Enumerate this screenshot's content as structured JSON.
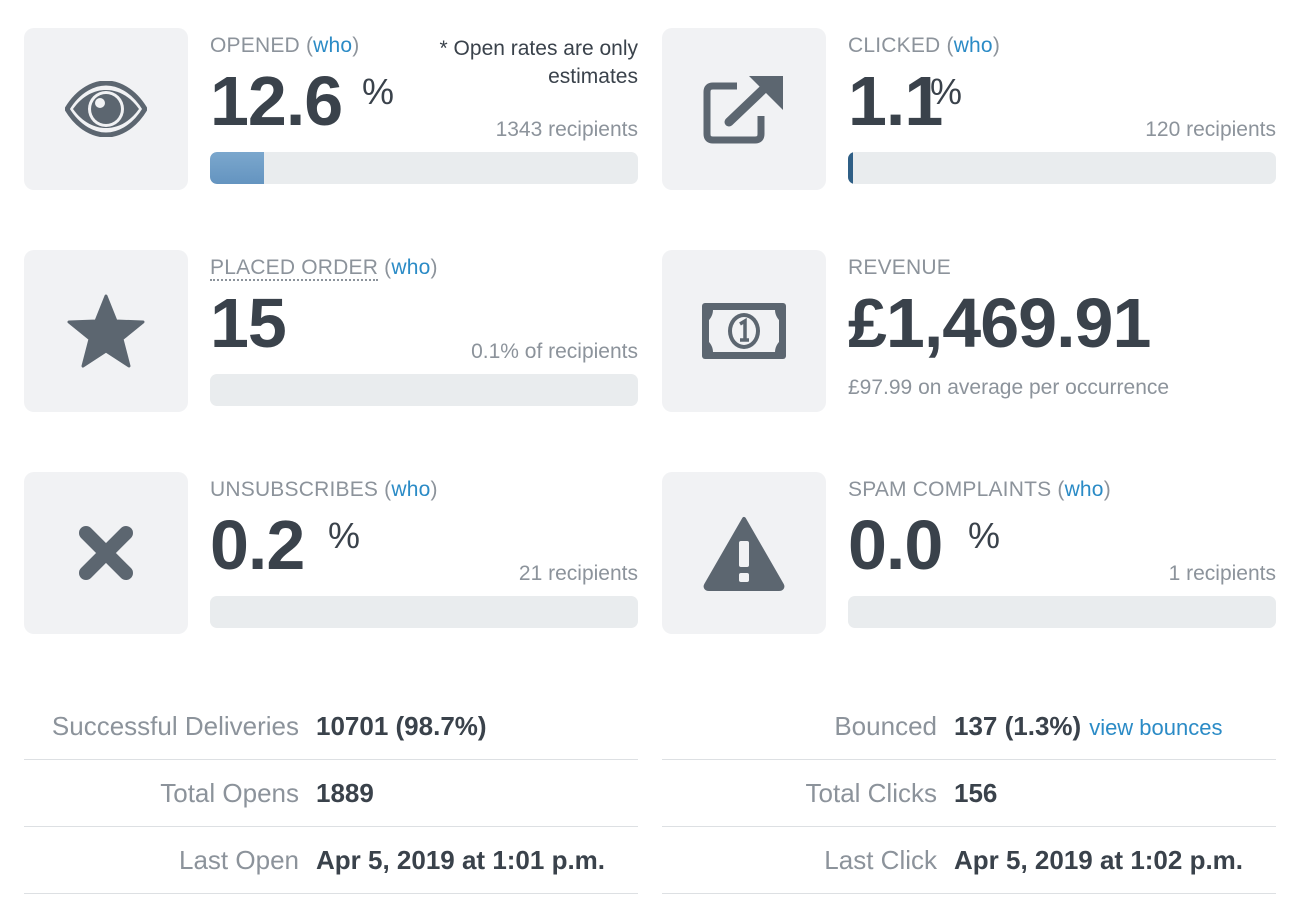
{
  "metrics": {
    "opened": {
      "label": "OPENED",
      "who": "who",
      "paren_open": "(",
      "paren_close": ")",
      "value": "12.6",
      "unit": "%",
      "recipients": "1343 recipients",
      "note": "* Open rates are only estimates",
      "progress_percent": 12.6,
      "icon": "eye-icon"
    },
    "clicked": {
      "label": "CLICKED",
      "who": "who",
      "paren_open": "(",
      "paren_close": ")",
      "value": "1.1",
      "unit": "%",
      "recipients": "120 recipients",
      "progress_percent": 1.1,
      "icon": "external-link-icon"
    },
    "placed_order": {
      "label": "PLACED ORDER",
      "who": "who",
      "paren_open": "(",
      "paren_close": ")",
      "value": "15",
      "recipients": "0.1% of recipients",
      "progress_percent": 0.1,
      "icon": "star-icon"
    },
    "revenue": {
      "label": "REVENUE",
      "value": "£1,469.91",
      "average": "£97.99 on average per occurrence",
      "icon": "banknote-icon"
    },
    "unsubscribes": {
      "label": "UNSUBSCRIBES",
      "who": "who",
      "paren_open": "(",
      "paren_close": ")",
      "value": "0.2",
      "unit": "%",
      "recipients": "21 recipients",
      "progress_percent": 0.2,
      "icon": "close-x-icon"
    },
    "spam": {
      "label": "SPAM COMPLAINTS",
      "who": "who",
      "paren_open": "(",
      "paren_close": ")",
      "value": "0.0",
      "unit": "%",
      "recipients": "1 recipients",
      "progress_percent": 0.0,
      "icon": "warning-icon"
    }
  },
  "stats_left": [
    {
      "label": "Successful Deliveries",
      "value": "10701 (98.7%)"
    },
    {
      "label": "Total Opens",
      "value": "1889"
    },
    {
      "label": "Last Open",
      "value": "Apr 5, 2019 at 1:01 p.m."
    }
  ],
  "stats_right": [
    {
      "label": "Bounced",
      "value": "137 (1.3%)",
      "link": "view bounces"
    },
    {
      "label": "Total Clicks",
      "value": "156"
    },
    {
      "label": "Last Click",
      "value": "Apr 5, 2019 at 1:02 p.m."
    }
  ],
  "colors": {
    "accent_link": "#2b8bc6",
    "icon_tile": "#f1f2f4",
    "icon_fill": "#5c6670",
    "bar_track": "#e9ecee",
    "bar_fill": "#6f9dc7",
    "clicked_bar_fill": "#2f5f86"
  }
}
